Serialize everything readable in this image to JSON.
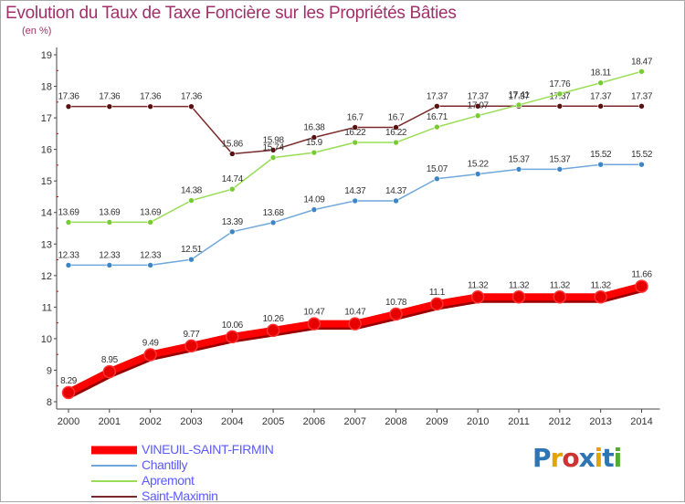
{
  "chart_data": {
    "type": "line",
    "title": "Evolution du Taux de Taxe Foncière sur les Propriétés Bâties",
    "subtitle": "(en %)",
    "xlabel": "",
    "ylabel": "",
    "x": [
      "2000",
      "2001",
      "2002",
      "2003",
      "2004",
      "2005",
      "2006",
      "2007",
      "2008",
      "2009",
      "2010",
      "2011",
      "2012",
      "2013",
      "2014"
    ],
    "ylim": [
      8,
      19
    ],
    "yticks": [
      "8",
      "9",
      "10",
      "11",
      "12",
      "13",
      "14",
      "15",
      "16",
      "17",
      "18",
      "19"
    ],
    "grid": false,
    "legend": "bottom-left",
    "series": [
      {
        "name": "VINEUIL-SAINT-FIRMIN",
        "color": "#ff0000",
        "marker_color": "#e60000",
        "values": [
          8.29,
          8.95,
          9.49,
          9.77,
          10.06,
          10.26,
          10.47,
          10.47,
          10.78,
          11.1,
          11.32,
          11.32,
          11.32,
          11.32,
          11.66
        ],
        "labels": [
          "8.29",
          "8.95",
          "9.49",
          "9.77",
          "10.06",
          "10.26",
          "10.47",
          "10.47",
          "10.78",
          "11.1",
          "11.32",
          "11.32",
          "11.32",
          "11.32",
          "11.66"
        ]
      },
      {
        "name": "Chantilly",
        "color": "#6fa8dc",
        "marker_color": "#3d85c6",
        "values": [
          12.33,
          12.33,
          12.33,
          12.51,
          13.39,
          13.68,
          14.09,
          14.37,
          14.37,
          15.07,
          15.22,
          15.37,
          15.37,
          15.52,
          15.52
        ],
        "labels": [
          "12.33",
          "12.33",
          "12.33",
          "12.51",
          "13.39",
          "13.68",
          "14.09",
          "14.37",
          "14.37",
          "15.07",
          "15.22",
          "15.37",
          "15.37",
          "15.52",
          "15.52"
        ]
      },
      {
        "name": "Apremont",
        "color": "#99dd55",
        "marker_color": "#77cc33",
        "values": [
          13.69,
          13.69,
          13.69,
          14.38,
          14.74,
          15.74,
          15.9,
          16.22,
          16.22,
          16.71,
          17.07,
          17.41,
          17.76,
          18.11,
          18.47
        ],
        "labels": [
          "13.69",
          "13.69",
          "13.69",
          "14.38",
          "14.74",
          "15.74",
          "15.9",
          "16.22",
          "16.22",
          "16.71",
          "17.07",
          "17.41",
          "17.76",
          "18.11",
          "18.47"
        ]
      },
      {
        "name": "Saint-Maximin",
        "color": "#7a2a2a",
        "marker_color": "#5a1010",
        "values": [
          17.36,
          17.36,
          17.36,
          17.36,
          15.86,
          15.98,
          16.38,
          16.7,
          16.7,
          17.37,
          17.37,
          17.37,
          17.37,
          17.37,
          17.37
        ],
        "labels": [
          "17.36",
          "17.36",
          "17.36",
          "17.36",
          "15.86",
          "15.98",
          "16.38",
          "16.7",
          "16.7",
          "17.37",
          "17.37",
          "17.37",
          "17.37",
          "17.37",
          "17.37"
        ]
      }
    ]
  },
  "brand": {
    "text": "Proxiti"
  }
}
